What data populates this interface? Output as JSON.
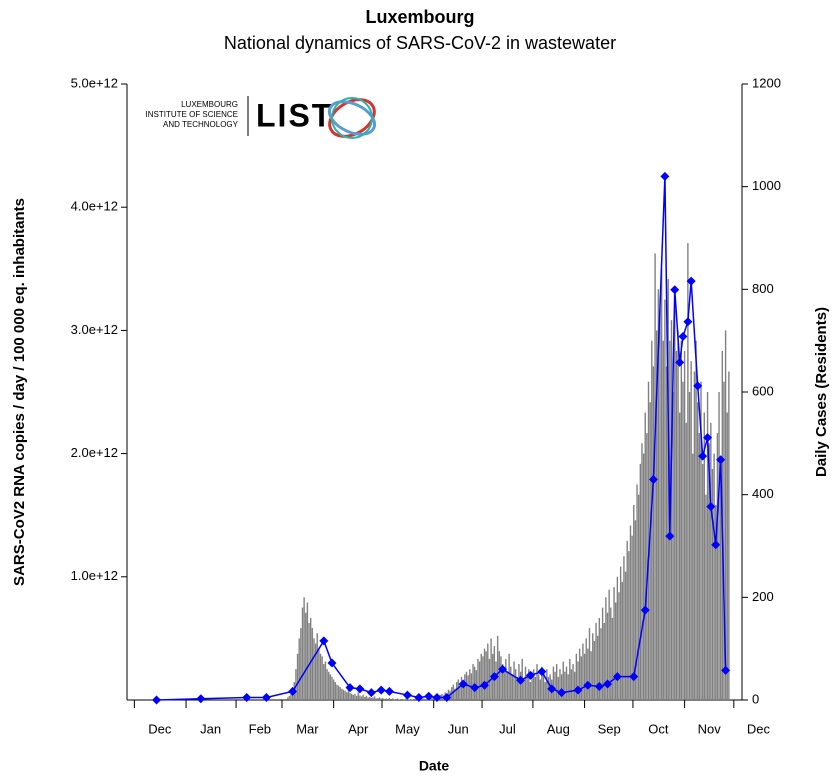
{
  "chart_data": {
    "type": "combo",
    "title": "Luxembourg",
    "subtitle": "National dynamics of SARS-CoV-2 in wastewater",
    "xlabel": "Date",
    "ylabel": "SARS-CoV2 RNA copies / day  / 100 000 eq. inhabitants",
    "y2label": "Daily Cases (Residents)",
    "logo": {
      "lines": [
        "LUXEMBOURG",
        "INSTITUTE OF SCIENCE",
        "AND TECHNOLOGY"
      ],
      "name": "LIST"
    },
    "xlim": [
      -5,
      370
    ],
    "xticks": [
      {
        "value": 15,
        "label": "Dec"
      },
      {
        "value": 46,
        "label": "Jan"
      },
      {
        "value": 76,
        "label": "Feb"
      },
      {
        "value": 105,
        "label": "Mar"
      },
      {
        "value": 136,
        "label": "Apr"
      },
      {
        "value": 166,
        "label": "May"
      },
      {
        "value": 197,
        "label": "Jun"
      },
      {
        "value": 227,
        "label": "Jul"
      },
      {
        "value": 258,
        "label": "Aug"
      },
      {
        "value": 289,
        "label": "Sep"
      },
      {
        "value": 319,
        "label": "Oct"
      },
      {
        "value": 350,
        "label": "Nov"
      },
      {
        "value": 380,
        "label": "Dec"
      }
    ],
    "ylim": [
      0,
      5000000000000
    ],
    "yticks": [
      {
        "value": 1000000000000,
        "label": "1.0e+12"
      },
      {
        "value": 2000000000000,
        "label": "2.0e+12"
      },
      {
        "value": 3000000000000,
        "label": "3.0e+12"
      },
      {
        "value": 4000000000000,
        "label": "4.0e+12"
      },
      {
        "value": 5000000000000,
        "label": "5.0e+12"
      }
    ],
    "y2lim": [
      0,
      1200
    ],
    "y2ticks": [
      0,
      200,
      400,
      600,
      800,
      1000,
      1200
    ],
    "series": [
      {
        "type": "bar",
        "axis": "y2",
        "color": "#808080",
        "x": [
          93,
          94,
          95,
          96,
          97,
          98,
          99,
          100,
          101,
          102,
          103,
          104,
          105,
          106,
          107,
          108,
          109,
          110,
          111,
          112,
          113,
          114,
          115,
          116,
          117,
          118,
          119,
          120,
          121,
          122,
          123,
          124,
          125,
          126,
          127,
          128,
          129,
          130,
          131,
          132,
          133,
          134,
          135,
          136,
          137,
          138,
          139,
          140,
          141,
          142,
          143,
          144,
          145,
          146,
          147,
          148,
          149,
          150,
          151,
          152,
          153,
          154,
          155,
          156,
          157,
          158,
          159,
          160,
          161,
          162,
          163,
          164,
          165,
          166,
          167,
          168,
          169,
          170,
          171,
          172,
          173,
          174,
          175,
          176,
          177,
          178,
          179,
          180,
          181,
          182,
          183,
          184,
          185,
          186,
          187,
          188,
          189,
          190,
          191,
          192,
          193,
          194,
          195,
          196,
          197,
          198,
          199,
          200,
          201,
          202,
          203,
          204,
          205,
          206,
          207,
          208,
          209,
          210,
          211,
          212,
          213,
          214,
          215,
          216,
          217,
          218,
          219,
          220,
          221,
          222,
          223,
          224,
          225,
          226,
          227,
          228,
          229,
          230,
          231,
          232,
          233,
          234,
          235,
          236,
          237,
          238,
          239,
          240,
          241,
          242,
          243,
          244,
          245,
          246,
          247,
          248,
          249,
          250,
          251,
          252,
          253,
          254,
          255,
          256,
          257,
          258,
          259,
          260,
          261,
          262,
          263,
          264,
          265,
          266,
          267,
          268,
          269,
          270,
          271,
          272,
          273,
          274,
          275,
          276,
          277,
          278,
          279,
          280,
          281,
          282,
          283,
          284,
          285,
          286,
          287,
          288,
          289,
          290,
          291,
          292,
          293,
          294,
          295,
          296,
          297,
          298,
          299,
          300,
          301,
          302,
          303,
          304,
          305,
          306,
          307,
          308,
          309,
          310,
          311,
          312,
          313,
          314,
          315,
          316,
          317,
          318,
          319,
          320,
          321,
          322,
          323,
          324,
          325,
          326,
          327,
          328,
          329,
          330,
          331,
          332,
          333,
          334,
          335,
          336,
          337,
          338,
          339,
          340,
          341,
          342,
          343,
          344,
          345,
          346,
          347,
          348,
          349,
          350,
          351,
          352,
          353,
          354,
          355,
          356,
          357,
          358,
          359,
          360,
          361,
          362
        ],
        "values": [
          5,
          8,
          12,
          20,
          35,
          60,
          90,
          120,
          140,
          180,
          200,
          170,
          190,
          150,
          160,
          140,
          120,
          110,
          130,
          100,
          90,
          85,
          70,
          75,
          60,
          55,
          50,
          45,
          40,
          35,
          30,
          28,
          25,
          22,
          20,
          18,
          15,
          20,
          14,
          12,
          10,
          12,
          8,
          15,
          9,
          7,
          10,
          6,
          8,
          5,
          6,
          4,
          5,
          7,
          3,
          4,
          5,
          3,
          4,
          2,
          3,
          2,
          4,
          2,
          3,
          1,
          2,
          3,
          1,
          2,
          2,
          1,
          3,
          2,
          1,
          2,
          1,
          2,
          3,
          1,
          2,
          1,
          2,
          3,
          2,
          4,
          3,
          5,
          4,
          6,
          5,
          8,
          6,
          10,
          12,
          9,
          15,
          12,
          20,
          18,
          25,
          30,
          22,
          35,
          40,
          30,
          45,
          38,
          50,
          55,
          48,
          60,
          52,
          70,
          65,
          58,
          80,
          75,
          90,
          85,
          100,
          95,
          110,
          80,
          120,
          90,
          105,
          75,
          125,
          95,
          85,
          70,
          60,
          80,
          55,
          90,
          65,
          50,
          75,
          60,
          45,
          70,
          55,
          80,
          40,
          65,
          50,
          60,
          35,
          55,
          60,
          45,
          70,
          50,
          40,
          65,
          55,
          35,
          60,
          45,
          50,
          40,
          65,
          55,
          70,
          45,
          60,
          50,
          75,
          55,
          65,
          50,
          80,
          60,
          70,
          55,
          90,
          75,
          100,
          85,
          110,
          90,
          120,
          100,
          140,
          95,
          130,
          115,
          150,
          125,
          160,
          140,
          180,
          150,
          200,
          170,
          215,
          180,
          160,
          220,
          190,
          240,
          210,
          260,
          230,
          280,
          250,
          310,
          290,
          340,
          320,
          380,
          350,
          420,
          400,
          460,
          500,
          480,
          560,
          520,
          620,
          580,
          700,
          650,
          870,
          720,
          800,
          760,
          840,
          700,
          780,
          650,
          820,
          700,
          740,
          600,
          760,
          680,
          720,
          560,
          700,
          620,
          680,
          540,
          890,
          600,
          660,
          480,
          640,
          700,
          580,
          520,
          620,
          460,
          560,
          400,
          600,
          500,
          540,
          450,
          480,
          380,
          520,
          600,
          460,
          680,
          620,
          720,
          560,
          640
        ]
      },
      {
        "type": "line",
        "color": "#0000ff",
        "x": [
          13,
          40,
          68,
          80,
          96,
          115,
          120,
          131,
          137,
          144,
          150,
          155,
          166,
          173,
          179,
          184,
          190,
          200,
          207,
          213,
          219,
          224,
          235,
          241,
          248,
          254,
          260,
          270,
          276,
          283,
          288,
          294,
          304,
          311,
          316,
          323,
          326,
          329,
          332,
          334,
          337,
          339,
          343,
          346,
          349,
          351,
          354,
          357,
          360
        ],
        "values": [
          0,
          10000000000,
          20000000000,
          20000000000,
          70000000000,
          480000000000,
          300000000000,
          100000000000,
          90000000000,
          60000000000,
          80000000000,
          70000000000,
          40000000000,
          20000000000,
          30000000000,
          20000000000,
          20000000000,
          130000000000,
          100000000000,
          120000000000,
          190000000000,
          250000000000,
          160000000000,
          200000000000,
          230000000000,
          90000000000,
          60000000000,
          80000000000,
          120000000000,
          110000000000,
          130000000000,
          190000000000,
          190000000000,
          730000000000,
          1790000000000,
          4250000000000,
          1330000000000,
          3330000000000,
          2740000000000,
          2950000000000,
          3070000000000,
          3400000000000,
          2550000000000,
          1980000000000,
          2130000000000,
          1570000000000,
          1260000000000,
          1950000000000,
          240000000000
        ]
      }
    ]
  }
}
